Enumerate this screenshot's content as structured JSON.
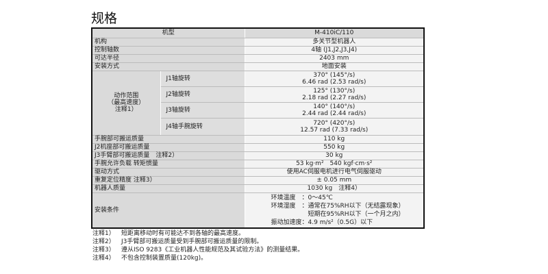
{
  "title": "规格",
  "header": {
    "label": "机型",
    "model": "M-410iC/110"
  },
  "rows_top": [
    {
      "label": "机构",
      "value": "多关节型机器人"
    },
    {
      "label": "控制轴数",
      "value": "4轴 (J1,J2,J3,J4)"
    },
    {
      "label": "可达半径",
      "value": "2403 mm"
    },
    {
      "label": "安装方式",
      "value": "地面安装"
    }
  ],
  "motion": {
    "label_lines": [
      "动作范围",
      "（最高速度）",
      "注释1）"
    ],
    "axes": [
      {
        "label": "J1轴旋转",
        "deg": "370° (145°/s)",
        "rad": "6.46 rad  (2.53 rad/s)"
      },
      {
        "label": "J2轴旋转",
        "deg": "125° (130°/s)",
        "rad": "2.18 rad  (2.27 rad/s)"
      },
      {
        "label": "J3轴旋转",
        "deg": "140° (140°/s)",
        "rad": "2.44 rad (2.44 rad/s)"
      },
      {
        "label": "J4轴手腕旋转",
        "deg": "720° (420°/s)",
        "rad": "12.57 rad (7.33 rad/s)"
      }
    ]
  },
  "rows_bottom": [
    {
      "label": "手腕部可搬运质量",
      "value": "110 kg"
    },
    {
      "label": "J2机座部可搬运质量",
      "value": "550 kg"
    },
    {
      "label": "J3手臂部可搬运质量　注释2）",
      "value": "30 kg"
    },
    {
      "label": "手腕允许负载 转矩惯量",
      "value": "53 kg·m²　540 kgf·cm·s²"
    },
    {
      "label": "驱动方式",
      "value": "使用AC伺服电机进行电气伺服驱动"
    },
    {
      "label": "重复定位精度  注释3）",
      "value": "± 0.05 mm"
    },
    {
      "label": "机器人质量",
      "value": "1030 kg　注释4）"
    }
  ],
  "install": {
    "label": "安装条件",
    "lines": [
      "环境温度　：0～45℃",
      "环境湿度　：通常在75%RH以下（无结露现象）",
      "　　　　　　短期在95%RH以下（一个月之内）",
      "振动加速度：4.9 m/s²（0.5G）以下"
    ]
  },
  "notes": [
    {
      "tag": "注释1）",
      "text": "短距离移动时有可能达不到各轴的最高速度。"
    },
    {
      "tag": "注释2）",
      "text": "J3手臂部可搬运质量受到手腕部可搬运质量的限制。"
    },
    {
      "tag": "注释3）",
      "text": "遵从ISO 9283《工业机器人性能规范及其试验方法》的测量结果。"
    },
    {
      "tag": "注释4）",
      "text": "不包含控制装置质量(120kg)。"
    }
  ]
}
